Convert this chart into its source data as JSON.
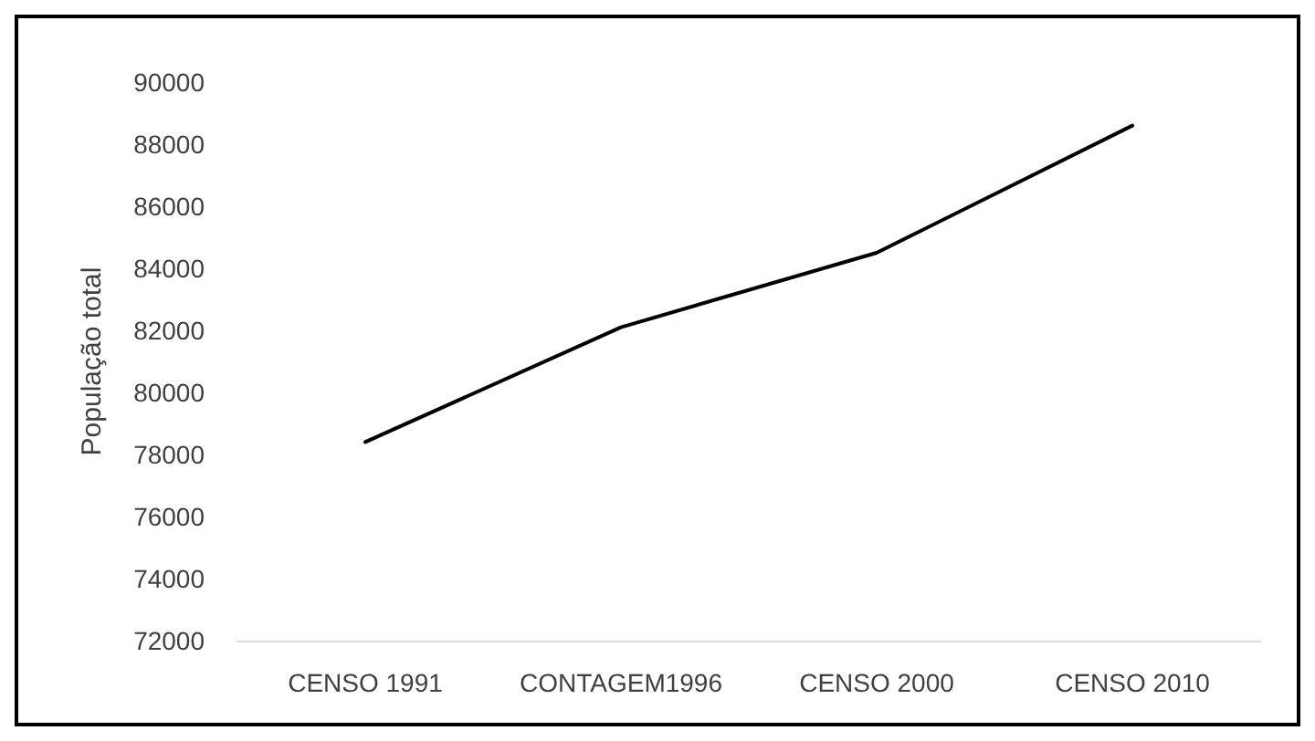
{
  "chart_data": {
    "type": "line",
    "ylabel": "População total",
    "categories": [
      "CENSO 1991",
      "CONTAGEM1996",
      "CENSO 2000",
      "CENSO 2010"
    ],
    "series": [
      {
        "color": "#000000",
        "values": [
          78400,
          82100,
          84500,
          88600
        ]
      }
    ],
    "ylim": [
      72000,
      90000
    ],
    "yticks": [
      72000,
      74000,
      76000,
      78000,
      80000,
      82000,
      84000,
      86000,
      88000,
      90000
    ],
    "grid": false,
    "marker": "none",
    "line_style": "solid"
  }
}
